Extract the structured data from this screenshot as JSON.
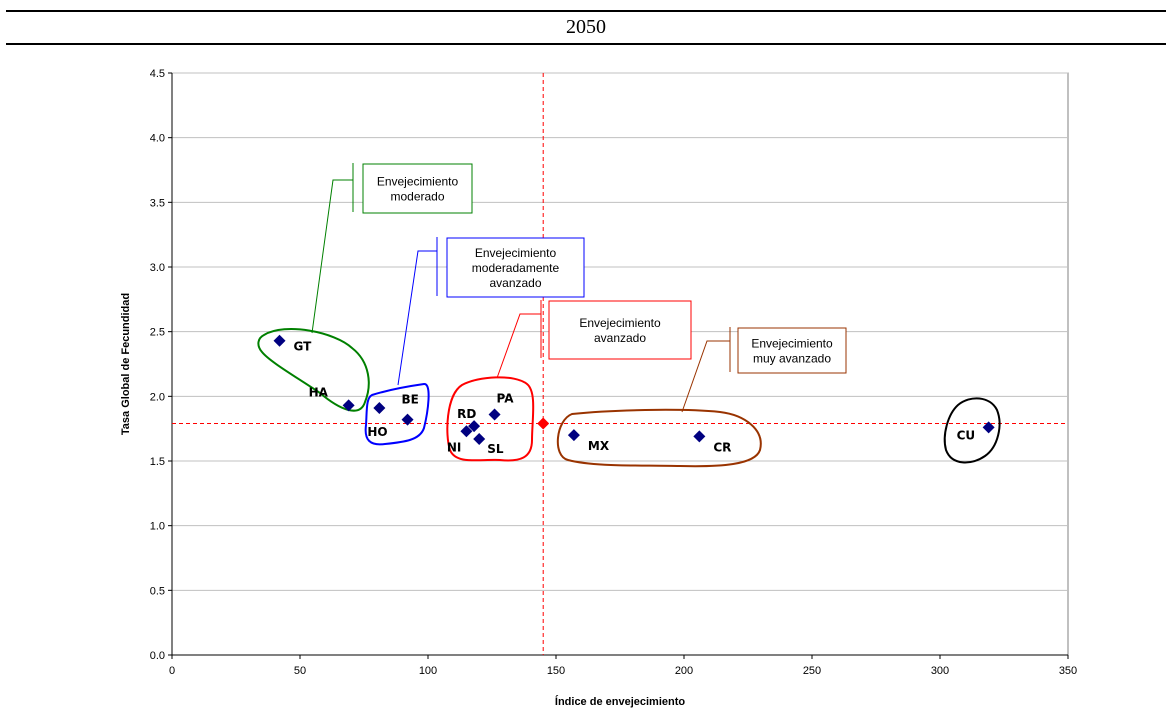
{
  "header": {
    "title": "2050"
  },
  "chart_data": {
    "type": "scatter",
    "title": "",
    "xlabel": "Índice de envejecimiento",
    "ylabel": "Tasa Global de Fecundidad",
    "xlim": [
      0,
      350
    ],
    "ylim": [
      0,
      4.5
    ],
    "xticks": [
      "0",
      "50",
      "100",
      "150",
      "200",
      "250",
      "300",
      "350"
    ],
    "yticks": [
      "0.0",
      "0.5",
      "1.0",
      "1.5",
      "2.0",
      "2.5",
      "3.0",
      "3.5",
      "4.0",
      "4.5"
    ],
    "grid": "horizontal",
    "points": [
      {
        "label": "GT",
        "x": 42,
        "y": 2.43
      },
      {
        "label": "HA",
        "x": 69,
        "y": 1.93
      },
      {
        "label": "HO",
        "x": 81,
        "y": 1.91
      },
      {
        "label": "BE",
        "x": 92,
        "y": 1.82
      },
      {
        "label": "RD",
        "x": 118,
        "y": 1.77
      },
      {
        "label": "NI",
        "x": 115,
        "y": 1.73
      },
      {
        "label": "SL",
        "x": 120,
        "y": 1.67
      },
      {
        "label": "PA",
        "x": 126,
        "y": 1.86
      },
      {
        "label": "MX",
        "x": 157,
        "y": 1.7
      },
      {
        "label": "CR",
        "x": 206,
        "y": 1.69
      },
      {
        "label": "CU",
        "x": 319,
        "y": 1.76
      }
    ],
    "reference_point": {
      "x": 145,
      "y": 1.79
    },
    "reference_lines": {
      "x": 145,
      "y": 1.79
    },
    "colors": {
      "points": "#000080",
      "reference": "#ff0000",
      "moderate": "#008000",
      "moderately_advanced": "#0000ff",
      "advanced": "#ff0000",
      "very_advanced": "#993300",
      "cuba": "#000000",
      "grid": "#c0c0c0"
    },
    "annotations": [
      {
        "lines": [
          "Envejecimiento",
          "moderado"
        ],
        "color": "#008000"
      },
      {
        "lines": [
          "Envejecimiento",
          "moderadamente",
          "avanzado"
        ],
        "color": "#0000ff"
      },
      {
        "lines": [
          "Envejecimiento",
          "avanzado"
        ],
        "color": "#ff0000"
      },
      {
        "lines": [
          "Envejecimiento",
          "muy avanzado"
        ],
        "color": "#993300"
      }
    ]
  }
}
